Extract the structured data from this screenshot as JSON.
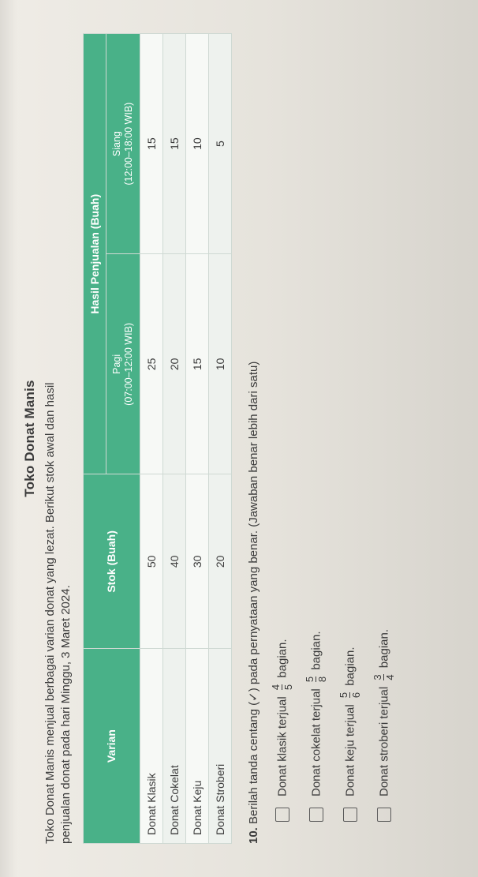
{
  "title": "Toko Donat Manis",
  "intro_line1": "Toko Donat Manis menjual berbagai varian donat yang lezat. Berikut stok awal dan hasil",
  "intro_line2": "penjualan donat pada hari Minggu, 3 Maret 2024.",
  "table": {
    "header_accent": "#49b188",
    "header_text_color": "#ffffff",
    "border_color": "#cfd9d3",
    "row_even_bg": "#eef2ee",
    "row_odd_bg": "#f7f9f6",
    "col_varian": "Varian",
    "col_stok": "Stok (Buah)",
    "col_hasil": "Hasil Penjualan (Buah)",
    "col_pagi_label": "Pagi",
    "col_pagi_time": "(07:00–12:00 WIB)",
    "col_siang_label": "Siang",
    "col_siang_time": "(12:00–18:00 WIB)",
    "rows": [
      {
        "varian": "Donat Klasik",
        "stok": "50",
        "pagi": "25",
        "siang": "15"
      },
      {
        "varian": "Donat Cokelat",
        "stok": "40",
        "pagi": "20",
        "siang": "15"
      },
      {
        "varian": "Donat Keju",
        "stok": "30",
        "pagi": "15",
        "siang": "10"
      },
      {
        "varian": "Donat Stroberi",
        "stok": "20",
        "pagi": "10",
        "siang": "5"
      }
    ]
  },
  "question": {
    "number": "10.",
    "text": "Berilah tanda centang (✓) pada pernyataan yang benar. (Jawaban benar lebih dari satu)"
  },
  "options": [
    {
      "pre": "Donat klasik terjual",
      "num": "4",
      "den": "5",
      "post": "bagian."
    },
    {
      "pre": "Donat cokelat terjual",
      "num": "5",
      "den": "8",
      "post": "bagian."
    },
    {
      "pre": "Donat keju terjual",
      "num": "5",
      "den": "6",
      "post": "bagian."
    },
    {
      "pre": "Donat stroberi terjual",
      "num": "3",
      "den": "4",
      "post": "bagian."
    }
  ]
}
